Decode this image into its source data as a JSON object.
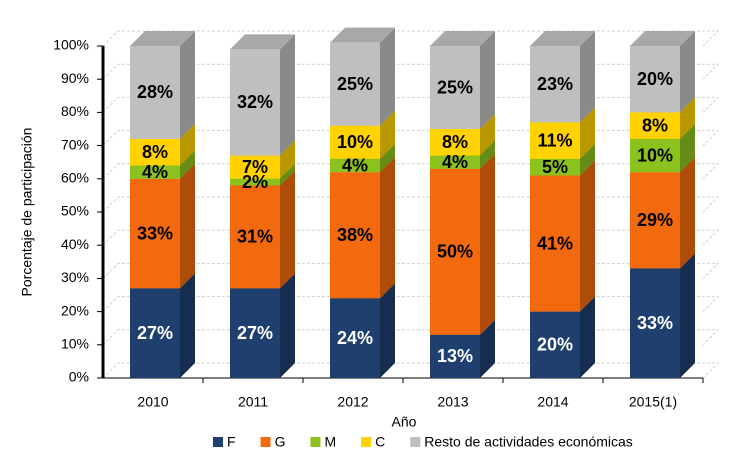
{
  "chart_data": {
    "type": "bar3d_stacked",
    "x_label": "Año",
    "y_label": "Porcentaje  de  participación",
    "categories": [
      "2010",
      "2011",
      "2012",
      "2013",
      "2014",
      "2015(1)"
    ],
    "series": [
      {
        "name": "F",
        "color": "#1f3f6e",
        "values": [
          27,
          27,
          24,
          13,
          20,
          33
        ],
        "value_labels": [
          "27%",
          "27%",
          "24%",
          "13%",
          "20%",
          "33%"
        ]
      },
      {
        "name": "G",
        "color": "#f26a0d",
        "values": [
          33,
          31,
          38,
          50,
          41,
          29
        ],
        "value_labels": [
          "33%",
          "31%",
          "38%",
          "50%",
          "41%",
          "29%"
        ]
      },
      {
        "name": "M",
        "color": "#8cc21e",
        "values": [
          4,
          2,
          4,
          4,
          5,
          10
        ],
        "value_labels": [
          "4%",
          "2%",
          "4%",
          "4%",
          "5%",
          "10%"
        ]
      },
      {
        "name": "C",
        "color": "#ffd200",
        "values": [
          8,
          7,
          10,
          8,
          11,
          8
        ],
        "value_labels": [
          "8%",
          "7%",
          "10%",
          "8%",
          "11%",
          "8%"
        ]
      },
      {
        "name": "Resto de actividades económicas",
        "color": "#bfbfbf",
        "values": [
          28,
          32,
          25,
          25,
          23,
          20
        ],
        "value_labels": [
          "28%",
          "32%",
          "25%",
          "25%",
          "23%",
          "20%"
        ]
      }
    ],
    "ylim": [
      0,
      100
    ],
    "yticks": [
      {
        "value": 0,
        "label": "0%"
      },
      {
        "value": 10,
        "label": "10%"
      },
      {
        "value": 20,
        "label": "20%"
      },
      {
        "value": 30,
        "label": "30%"
      },
      {
        "value": 40,
        "label": "40%"
      },
      {
        "value": 50,
        "label": "50%"
      },
      {
        "value": 60,
        "label": "60%"
      },
      {
        "value": 70,
        "label": "70%"
      },
      {
        "value": 80,
        "label": "80%"
      },
      {
        "value": 90,
        "label": "90%"
      },
      {
        "value": 100,
        "label": "100%"
      }
    ],
    "grid": true,
    "legend": "bottom"
  }
}
